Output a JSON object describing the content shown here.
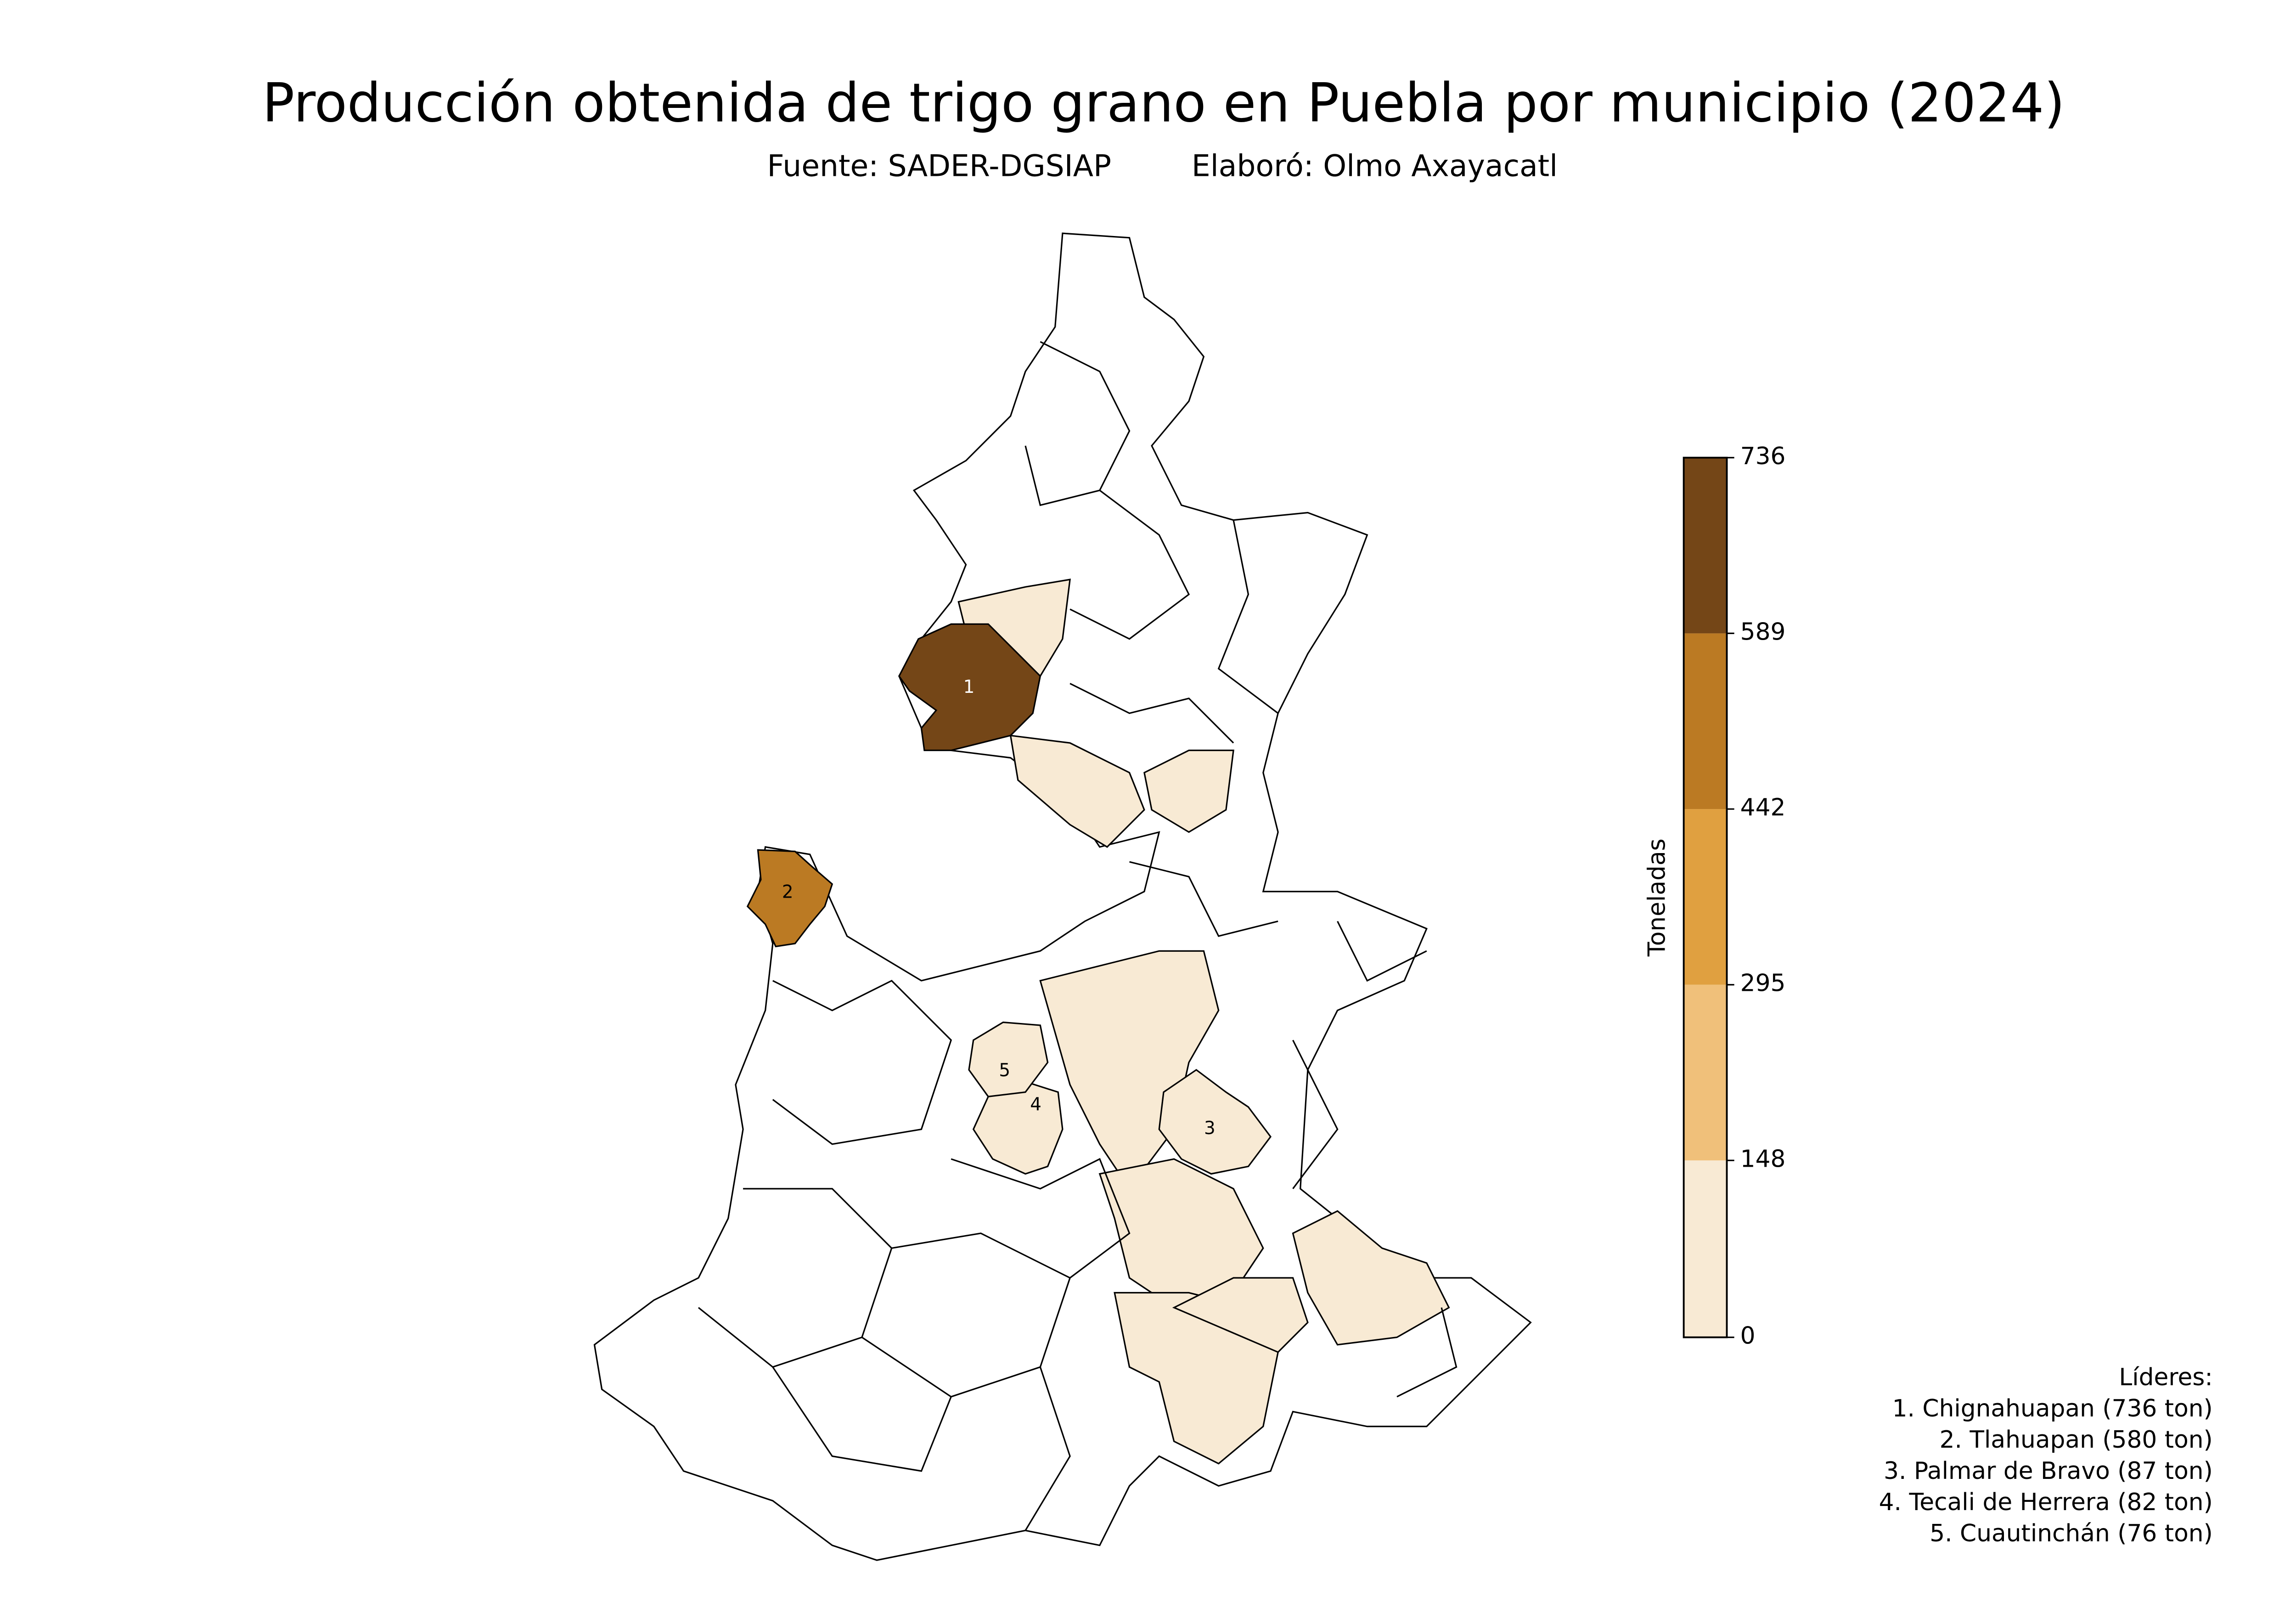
{
  "chart_data": {
    "type": "choropleth",
    "title": "Producción obtenida de trigo grano en Puebla por municipio (2024)",
    "subtitle": [
      "Fuente: SADER-DGSIAP",
      "Elaboró: Olmo Axayacatl"
    ],
    "colorbar": {
      "label": "Toneladas",
      "clim": [
        0,
        736
      ],
      "ticks": [
        0,
        148,
        295,
        442,
        589,
        736
      ],
      "colors": [
        "#f8ead4",
        "#f0c07a",
        "#e0a040",
        "#bb7a23",
        "#744617"
      ]
    },
    "leaders_title": "Líderes:",
    "leaders": [
      {
        "rank": 1,
        "label": "1. Chignahuapan (736 ton)",
        "value": 736
      },
      {
        "rank": 2,
        "label": "2. Tlahuapan (580 ton)",
        "value": 580
      },
      {
        "rank": 3,
        "label": "3. Palmar de Bravo (87 ton)",
        "value": 87
      },
      {
        "rank": 4,
        "label": "4. Tecali de Herrera (82 ton)",
        "value": 82
      },
      {
        "rank": 5,
        "label": "5. Cuautinchán (76 ton)",
        "value": 76
      }
    ]
  }
}
